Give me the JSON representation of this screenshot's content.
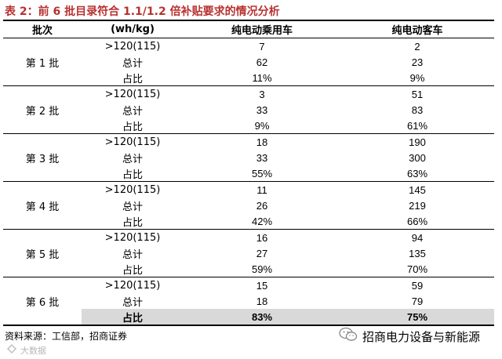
{
  "title": "表 2：前 6 批目录符合 1.1/1.2 倍补贴要求的情况分析",
  "columns": [
    "批次",
    "(wh/kg)",
    "纯电动乘用车",
    "纯电动客车"
  ],
  "groups": [
    {
      "batch": "第 1 批",
      "rows": [
        {
          "metric": ">120(115)",
          "car": "7",
          "bus": "2"
        },
        {
          "metric": "总计",
          "car": "62",
          "bus": "23"
        },
        {
          "metric": "占比",
          "car": "11%",
          "bus": "9%"
        }
      ]
    },
    {
      "batch": "第 2 批",
      "rows": [
        {
          "metric": ">120(115)",
          "car": "3",
          "bus": "51"
        },
        {
          "metric": "总计",
          "car": "33",
          "bus": "83"
        },
        {
          "metric": "占比",
          "car": "9%",
          "bus": "61%"
        }
      ]
    },
    {
      "batch": "第 3 批",
      "rows": [
        {
          "metric": ">120(115)",
          "car": "18",
          "bus": "190"
        },
        {
          "metric": "总计",
          "car": "33",
          "bus": "300"
        },
        {
          "metric": "占比",
          "car": "55%",
          "bus": "63%"
        }
      ]
    },
    {
      "batch": "第 4 批",
      "rows": [
        {
          "metric": ">120(115)",
          "car": "11",
          "bus": "145"
        },
        {
          "metric": "总计",
          "car": "26",
          "bus": "219"
        },
        {
          "metric": "占比",
          "car": "42%",
          "bus": "66%"
        }
      ]
    },
    {
      "batch": "第 5 批",
      "rows": [
        {
          "metric": ">120(115)",
          "car": "16",
          "bus": "94"
        },
        {
          "metric": "总计",
          "car": "27",
          "bus": "135"
        },
        {
          "metric": "占比",
          "car": "59%",
          "bus": "70%"
        }
      ]
    },
    {
      "batch": "第 6 批",
      "rows": [
        {
          "metric": ">120(115)",
          "car": "15",
          "bus": "59"
        },
        {
          "metric": "总计",
          "car": "18",
          "bus": "79"
        },
        {
          "metric": "占比",
          "car": "83%",
          "bus": "75%"
        }
      ]
    }
  ],
  "source": "资料来源：工信部，招商证券",
  "watermark_left": "大数据",
  "watermark_right": "招商电力设备与新能源",
  "colors": {
    "title": "#b8312f",
    "highlight": "#d9d9d9"
  }
}
